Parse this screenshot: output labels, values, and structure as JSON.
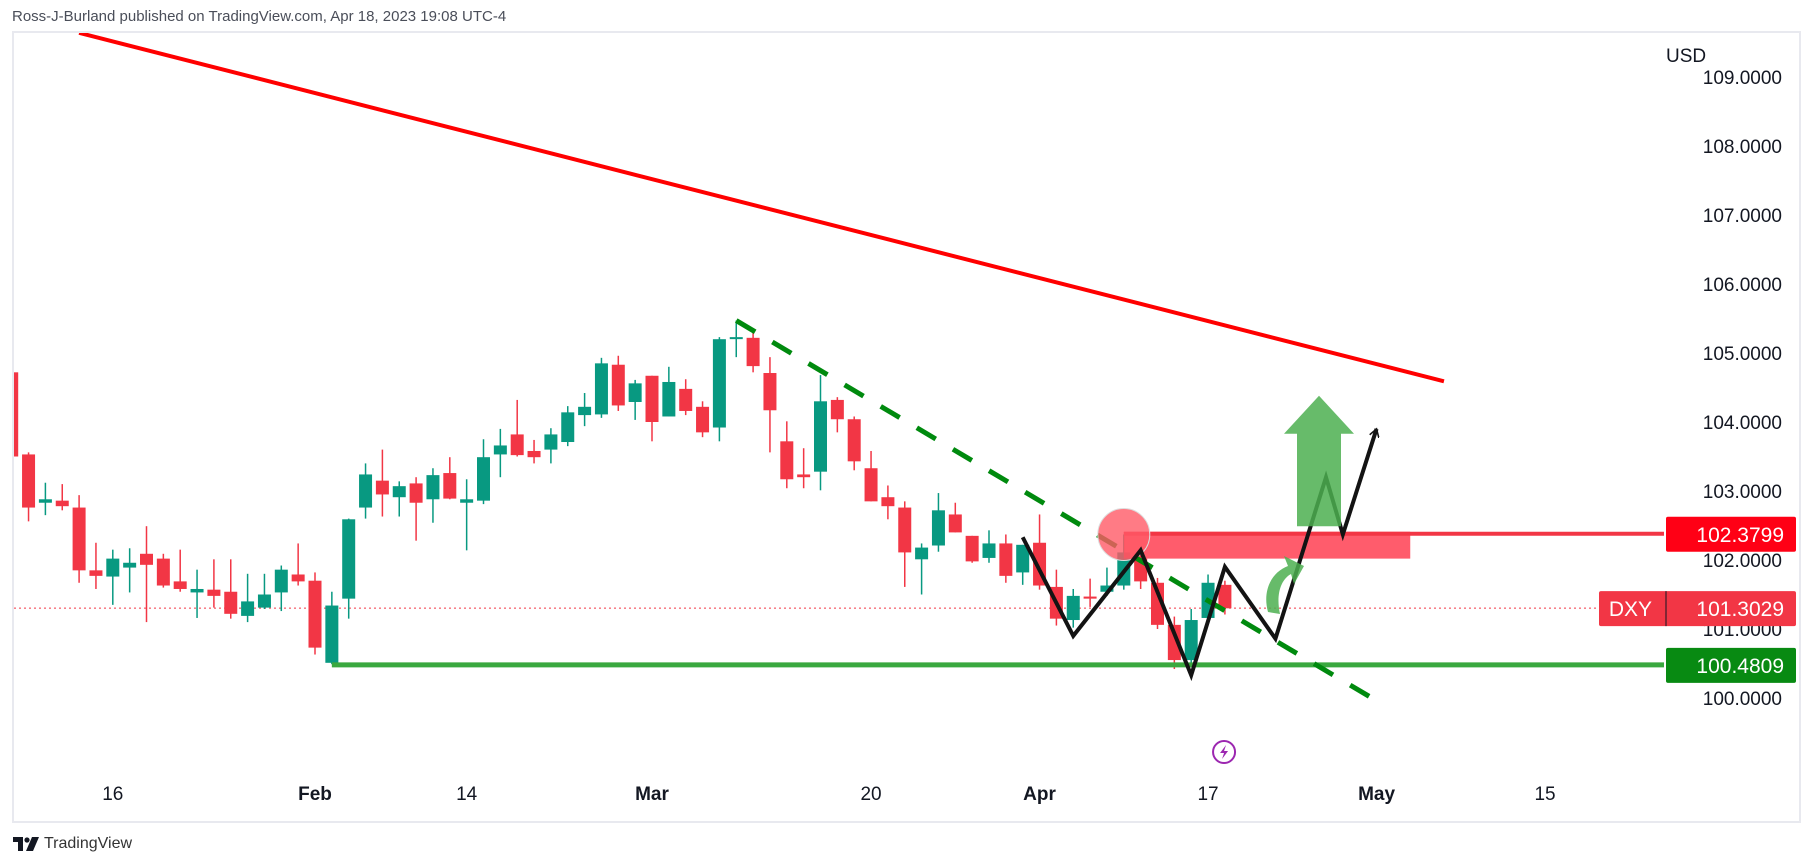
{
  "header": {
    "text": "Ross-J-Burland published on TradingView.com, Apr 18, 2023 19:08 UTC-4"
  },
  "footer": {
    "brand": "TradingView"
  },
  "colors": {
    "up": "#089981",
    "down": "#f23645",
    "resistance": "#ff0000",
    "support": "#008a0e",
    "support_line": "#3aa83f",
    "trend_dashed": "#008a0e",
    "arrow": "#4caf50",
    "zigzag": "#131313",
    "event": "#9c27b0"
  },
  "chart_data": {
    "type": "candlestick",
    "symbol": "DXY",
    "currency": "USD",
    "last_price": "101.3029",
    "resistance_label": "102.3799",
    "support_label": "100.4809",
    "y_ticks": [
      "100.0000",
      "101.0000",
      "102.0000",
      "103.0000",
      "104.0000",
      "105.0000",
      "106.0000",
      "107.0000",
      "108.0000",
      "109.0000"
    ],
    "x_ticks": [
      {
        "date": "2023-01-16",
        "label": "16",
        "month": false
      },
      {
        "date": "2023-02-01",
        "label": "Feb",
        "month": true
      },
      {
        "date": "2023-02-14",
        "label": "14",
        "month": false
      },
      {
        "date": "2023-03-01",
        "label": "Mar",
        "month": true
      },
      {
        "date": "2023-03-20",
        "label": "20",
        "month": false
      },
      {
        "date": "2023-04-03",
        "label": "Apr",
        "month": true
      },
      {
        "date": "2023-04-17",
        "label": "17",
        "month": false
      },
      {
        "date": "2023-05-01",
        "label": "May",
        "month": true
      },
      {
        "date": "2023-05-15",
        "label": "15",
        "month": false
      }
    ],
    "candles": [
      [
        "2023-01-06",
        104.72,
        104.72,
        103.5,
        103.5
      ],
      [
        "2023-01-09",
        103.53,
        103.56,
        102.56,
        102.76
      ],
      [
        "2023-01-10",
        102.83,
        103.12,
        102.65,
        102.88
      ],
      [
        "2023-01-11",
        102.86,
        103.1,
        102.72,
        102.78
      ],
      [
        "2023-01-12",
        102.76,
        102.94,
        101.67,
        101.85
      ],
      [
        "2023-01-13",
        101.85,
        102.25,
        101.58,
        101.77
      ],
      [
        "2023-01-16",
        101.76,
        102.15,
        101.35,
        102.02
      ],
      [
        "2023-01-17",
        101.89,
        102.17,
        101.53,
        101.96
      ],
      [
        "2023-01-18",
        102.09,
        102.49,
        101.1,
        101.93
      ],
      [
        "2023-01-19",
        102.02,
        102.09,
        101.6,
        101.63
      ],
      [
        "2023-01-20",
        101.69,
        102.15,
        101.54,
        101.58
      ],
      [
        "2023-01-23",
        101.53,
        101.86,
        101.16,
        101.58
      ],
      [
        "2023-01-24",
        101.57,
        102.01,
        101.31,
        101.48
      ],
      [
        "2023-01-25",
        101.54,
        102.01,
        101.15,
        101.22
      ],
      [
        "2023-01-26",
        101.19,
        101.8,
        101.1,
        101.4
      ],
      [
        "2023-01-27",
        101.31,
        101.8,
        101.29,
        101.5
      ],
      [
        "2023-01-30",
        101.53,
        101.92,
        101.26,
        101.86
      ],
      [
        "2023-01-31",
        101.79,
        102.24,
        101.63,
        101.69
      ],
      [
        "2023-02-01",
        101.7,
        101.82,
        100.63,
        100.73
      ],
      [
        "2023-02-02",
        100.51,
        101.54,
        100.49,
        101.34
      ],
      [
        "2023-02-03",
        101.44,
        102.6,
        101.15,
        102.59
      ],
      [
        "2023-02-06",
        102.76,
        103.4,
        102.6,
        103.24
      ],
      [
        "2023-02-07",
        103.15,
        103.6,
        102.63,
        102.95
      ],
      [
        "2023-02-08",
        102.91,
        103.14,
        102.63,
        103.07
      ],
      [
        "2023-02-09",
        103.11,
        103.2,
        102.28,
        102.83
      ],
      [
        "2023-02-10",
        102.88,
        103.33,
        102.54,
        103.23
      ],
      [
        "2023-02-13",
        103.26,
        103.49,
        102.88,
        102.89
      ],
      [
        "2023-02-14",
        102.83,
        103.17,
        102.14,
        102.88
      ],
      [
        "2023-02-15",
        102.86,
        103.75,
        102.81,
        103.49
      ],
      [
        "2023-02-16",
        103.53,
        103.9,
        103.2,
        103.66
      ],
      [
        "2023-02-17",
        103.82,
        104.32,
        103.5,
        103.52
      ],
      [
        "2023-02-20",
        103.58,
        103.74,
        103.4,
        103.49
      ],
      [
        "2023-02-21",
        103.6,
        103.91,
        103.4,
        103.82
      ],
      [
        "2023-02-22",
        103.71,
        104.23,
        103.65,
        104.14
      ],
      [
        "2023-02-23",
        104.1,
        104.42,
        103.94,
        104.22
      ],
      [
        "2023-02-24",
        104.11,
        104.93,
        104.06,
        104.85
      ],
      [
        "2023-02-27",
        104.83,
        104.96,
        104.16,
        104.24
      ],
      [
        "2023-02-28",
        104.29,
        104.61,
        104.03,
        104.56
      ],
      [
        "2023-03-01",
        104.67,
        104.67,
        103.72,
        104.0
      ],
      [
        "2023-03-02",
        104.08,
        104.8,
        104.08,
        104.58
      ],
      [
        "2023-03-03",
        104.48,
        104.62,
        104.1,
        104.16
      ],
      [
        "2023-03-06",
        104.22,
        104.3,
        103.78,
        103.85
      ],
      [
        "2023-03-07",
        103.92,
        105.23,
        103.72,
        105.2
      ],
      [
        "2023-03-08",
        105.21,
        105.47,
        104.94,
        105.23
      ],
      [
        "2023-03-09",
        105.22,
        105.32,
        104.72,
        104.81
      ],
      [
        "2023-03-10",
        104.71,
        104.94,
        103.56,
        104.17
      ],
      [
        "2023-03-13",
        103.72,
        104.01,
        103.04,
        103.17
      ],
      [
        "2023-03-14",
        103.24,
        103.62,
        103.04,
        103.2
      ],
      [
        "2023-03-15",
        103.28,
        104.68,
        103.01,
        104.3
      ],
      [
        "2023-03-16",
        104.32,
        104.36,
        103.85,
        104.04
      ],
      [
        "2023-03-17",
        104.04,
        104.08,
        103.3,
        103.43
      ],
      [
        "2023-03-20",
        103.33,
        103.58,
        102.85,
        102.85
      ],
      [
        "2023-03-21",
        102.91,
        103.08,
        102.59,
        102.78
      ],
      [
        "2023-03-22",
        102.76,
        102.85,
        101.61,
        102.11
      ],
      [
        "2023-03-23",
        102.01,
        102.24,
        101.5,
        102.18
      ],
      [
        "2023-03-24",
        102.21,
        102.97,
        102.12,
        102.72
      ],
      [
        "2023-03-27",
        102.66,
        102.83,
        102.4,
        102.4
      ],
      [
        "2023-03-28",
        102.35,
        102.35,
        101.96,
        101.98
      ],
      [
        "2023-03-29",
        102.03,
        102.43,
        101.96,
        102.24
      ],
      [
        "2023-03-30",
        102.24,
        102.37,
        101.67,
        101.77
      ],
      [
        "2023-03-31",
        101.82,
        102.22,
        101.64,
        102.22
      ],
      [
        "2023-04-03",
        102.25,
        102.66,
        101.57,
        101.63
      ],
      [
        "2023-04-04",
        101.61,
        101.86,
        101.05,
        101.15
      ],
      [
        "2023-04-05",
        101.13,
        101.58,
        101.02,
        101.48
      ],
      [
        "2023-04-06",
        101.47,
        101.73,
        101.32,
        101.44
      ],
      [
        "2023-04-07",
        101.54,
        101.89,
        101.48,
        101.63
      ],
      [
        "2023-04-10",
        101.63,
        102.37,
        101.57,
        102.11
      ],
      [
        "2023-04-11",
        102.02,
        102.08,
        101.58,
        101.69
      ],
      [
        "2023-04-12",
        101.67,
        101.74,
        101.0,
        101.06
      ],
      [
        "2023-04-13",
        101.06,
        101.18,
        100.42,
        100.55
      ],
      [
        "2023-04-14",
        100.55,
        101.29,
        100.5,
        101.13
      ],
      [
        "2023-04-17",
        101.16,
        101.79,
        101.1,
        101.67
      ],
      [
        "2023-04-18",
        101.64,
        101.7,
        101.21,
        101.3
      ]
    ],
    "drawings": {
      "resistance_trendline": [
        [
          "2023-01-12",
          109.64
        ],
        [
          "2023-05-05",
          104.59
        ]
      ],
      "dashed_trendline": [
        [
          "2023-03-08",
          105.47
        ],
        [
          "2023-05-01",
          99.96
        ]
      ],
      "support_level": {
        "from": "2023-02-02",
        "price": 100.4809
      },
      "resistance_level": {
        "from": "2023-04-10",
        "price": 102.3799
      },
      "resistance_zone": {
        "from": "2023-04-10",
        "to": "2023-05-03",
        "top": 102.41,
        "bottom": 102.02
      },
      "highlight_circle": {
        "date": "2023-04-10",
        "price": 102.37
      },
      "zigzag_projection": [
        [
          "2023-03-31",
          102.33
        ],
        [
          "2023-04-05",
          100.9
        ],
        [
          "2023-04-11",
          102.14
        ],
        [
          "2023-04-14",
          100.33
        ],
        [
          "2023-04-18",
          101.9
        ],
        [
          "2023-04-21",
          100.86
        ],
        [
          "2023-04-26",
          103.2
        ],
        [
          "2023-04-27",
          102.37
        ],
        [
          "2023-05-01",
          103.9
        ]
      ],
      "up_arrow": {
        "date": "2023-04-26",
        "bottom": 102.49,
        "top": 104.38
      },
      "event_icon": {
        "date": "2023-04-17",
        "icon": "lightning-icon"
      }
    }
  }
}
